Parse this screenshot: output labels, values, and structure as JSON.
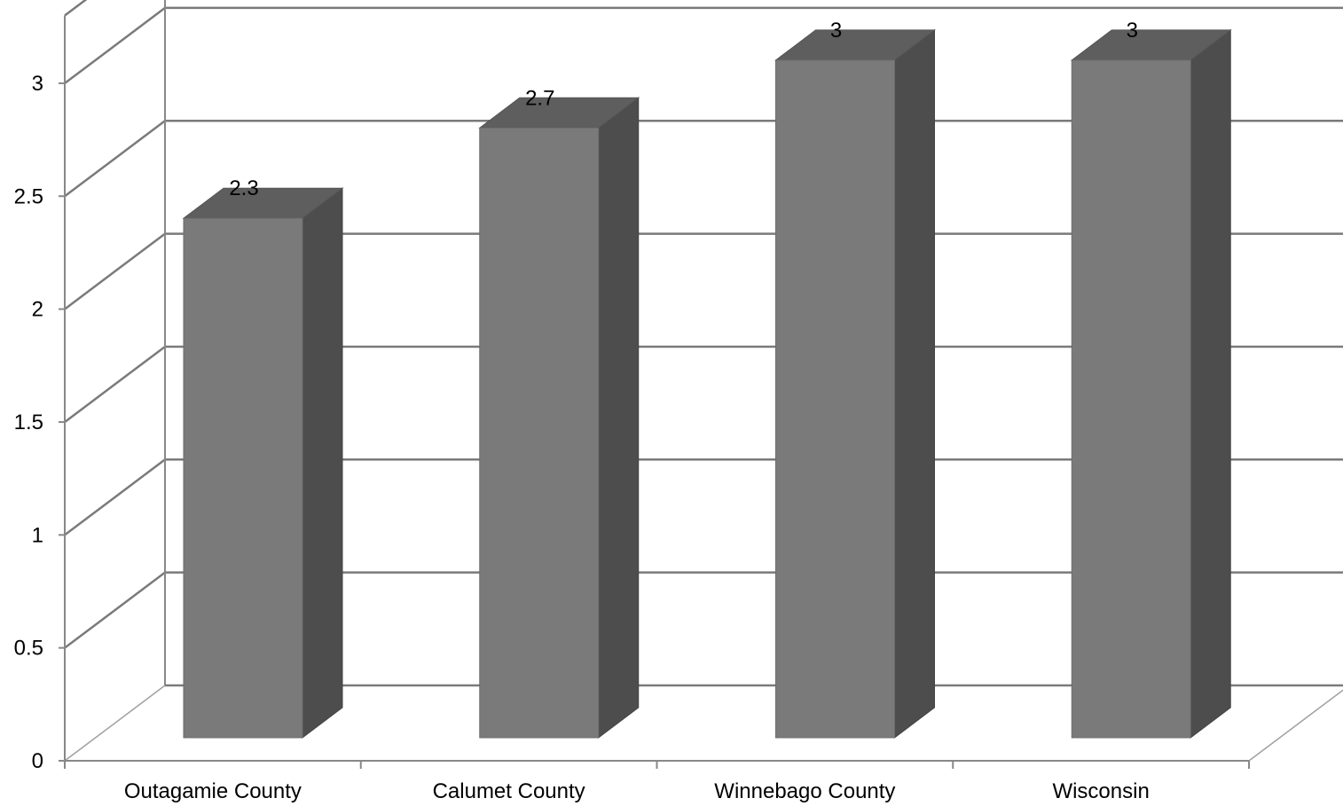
{
  "chart_data": {
    "type": "bar",
    "style": "3d",
    "categories": [
      "Outagamie County",
      "Calumet County",
      "Winnebago County",
      "Wisconsin"
    ],
    "series": [
      {
        "values": [
          2.3,
          2.7,
          3,
          3
        ]
      }
    ],
    "data_labels": [
      "2.3",
      "2.7",
      "3",
      "3"
    ],
    "y_ticks": [
      "0",
      "0.5",
      "1",
      "1.5",
      "2",
      "2.5",
      "3"
    ],
    "ylim": [
      0,
      3.3
    ],
    "grid": true,
    "legend": "none",
    "colors": {
      "bar_front": "#7a7a7a",
      "bar_side": "#4d4d4d",
      "bar_top": "#5e5e5e"
    }
  }
}
